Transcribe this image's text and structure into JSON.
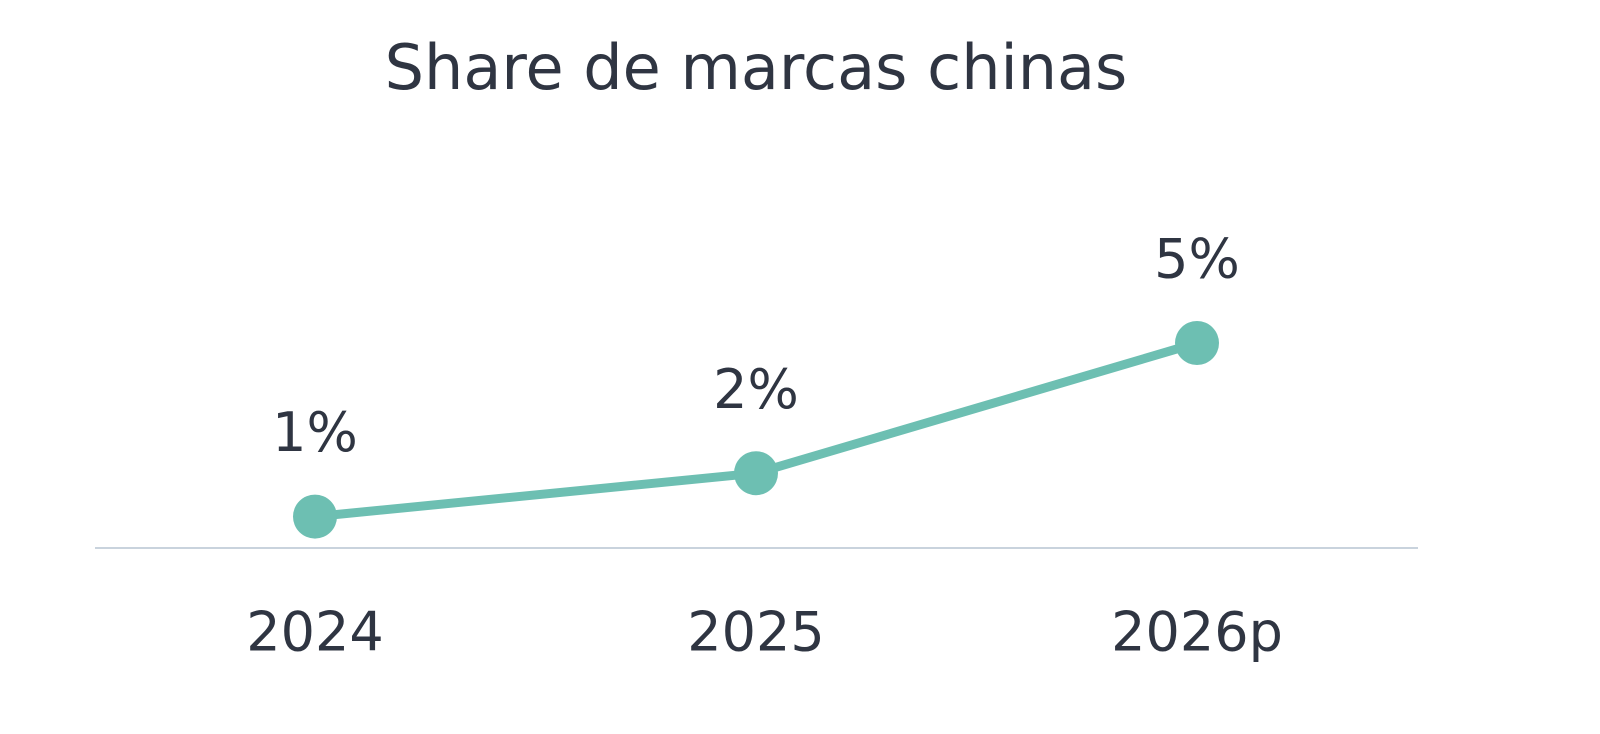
{
  "chart_data": {
    "type": "line",
    "title": "Share de marcas chinas",
    "categories": [
      "2024",
      "2025",
      "2026p"
    ],
    "series": [
      {
        "color": "#6dbfb2",
        "values": [
          1,
          2,
          5
        ],
        "value_labels": [
          "1%",
          "2%",
          "5%"
        ]
      }
    ]
  }
}
